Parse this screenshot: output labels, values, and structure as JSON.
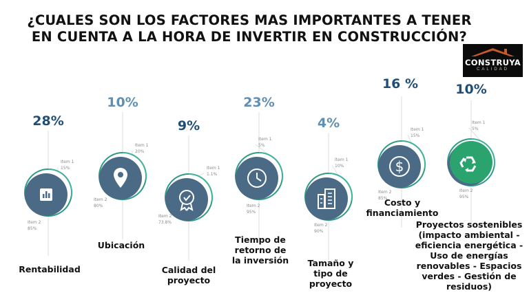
{
  "title": "¿CUALES SON LOS FACTORES MAS IMPORTANTES A TENER EN CUENTA A LA HORA DE INVERTIR EN CONSTRUCCIÓN?",
  "logo": {
    "brand": "CONSTRUYA",
    "sub": "CALIDAD"
  },
  "colors": {
    "ring": "#2e9a83",
    "ring_light": "#3fb39b",
    "disc": "#4a6a86",
    "pct_dark": "#1f4f78",
    "pct_light": "#5f8fb1"
  },
  "chart_data": {
    "type": "pie",
    "factors": [
      {
        "label": "Rentabilidad",
        "percent_label": "28%",
        "icon": "bar-chart-icon",
        "item1": {
          "name": "Item 1",
          "value": "15%"
        },
        "item2": {
          "name": "Item 2",
          "value": "85%"
        }
      },
      {
        "label": "Ubicación",
        "percent_label": "10%",
        "icon": "location-pin-icon",
        "item1": {
          "name": "Item 1",
          "value": "20%"
        },
        "item2": {
          "name": "Item 2",
          "value": "80%"
        }
      },
      {
        "label": "Calidad del\nproyecto",
        "percent_label": "9%",
        "icon": "quality-badge-icon",
        "item1": {
          "name": "Item 1",
          "value": "1.1%"
        },
        "item2": {
          "name": "Item 2",
          "value": "73.8%"
        }
      },
      {
        "label": "Tiempo de\nretorno de\nla inversión",
        "percent_label": "23%",
        "icon": "clock-icon",
        "item1": {
          "name": "Item 1",
          "value": "5%"
        },
        "item2": {
          "name": "Item 2",
          "value": "95%"
        }
      },
      {
        "label": "Tamaño y\ntipo de\nproyecto",
        "percent_label": "4%",
        "icon": "building-icon",
        "item1": {
          "name": "Item 1",
          "value": "10%"
        },
        "item2": {
          "name": "Item 2",
          "value": "90%"
        }
      },
      {
        "label": "Costo y\nfinanciamiento",
        "percent_label": "16 %",
        "icon": "dollar-icon",
        "item1": {
          "name": "Item 1",
          "value": "15%"
        },
        "item2": {
          "name": "Item 2",
          "value": "85%"
        }
      },
      {
        "label": "Proyectos sostenibles\n(impacto ambiental -\neficiencia energética -\nUso de energías\nrenovables -  Espacios\nverdes - Gestión de\nresiduos)",
        "percent_label": "10%",
        "icon": "recycle-icon",
        "item1": {
          "name": "Item 1",
          "value": "5%"
        },
        "item2": {
          "name": "Item 2",
          "value": "95%"
        }
      }
    ]
  }
}
